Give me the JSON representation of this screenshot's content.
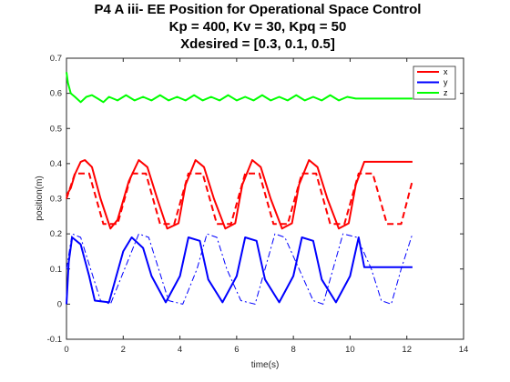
{
  "chart_data": {
    "type": "line",
    "title_lines": [
      "P4 A iii- EE Position for Operational Space Control",
      "Kp = 400, Kv = 30, Kpq = 50",
      "Xdesired = [0.3, 0.1, 0.5]"
    ],
    "xlabel": "time(s)",
    "ylabel": "position(m)",
    "xlim": [
      0,
      14
    ],
    "ylim": [
      -0.1,
      0.7
    ],
    "xticks": [
      "0",
      "2",
      "4",
      "6",
      "8",
      "10",
      "12",
      "14"
    ],
    "yticks": [
      "-0.1",
      "0",
      "0.1",
      "0.2",
      "0.3",
      "0.4",
      "0.5",
      "0.6",
      "0.7"
    ],
    "grid": false,
    "legend_position": "top-right",
    "legend": [
      {
        "label": "x",
        "color": "#ff0000"
      },
      {
        "label": "y",
        "color": "#0000ff"
      },
      {
        "label": "z",
        "color": "#00ff00"
      }
    ],
    "series": [
      {
        "name": "x",
        "color": "#ff0000",
        "style": "solid",
        "width": 2,
        "x": [
          0,
          0.15,
          0.3,
          0.5,
          0.65,
          0.9,
          1.2,
          1.55,
          1.8,
          2.2,
          2.55,
          2.85,
          3.2,
          3.55,
          3.95,
          4.2,
          4.55,
          4.85,
          5.2,
          5.6,
          5.95,
          6.2,
          6.55,
          6.85,
          7.2,
          7.6,
          7.95,
          8.2,
          8.55,
          8.85,
          9.2,
          9.6,
          9.95,
          10.2,
          10.5,
          12.2
        ],
        "y": [
          0.31,
          0.33,
          0.37,
          0.405,
          0.41,
          0.39,
          0.3,
          0.215,
          0.24,
          0.35,
          0.41,
          0.39,
          0.3,
          0.215,
          0.23,
          0.34,
          0.41,
          0.39,
          0.3,
          0.215,
          0.23,
          0.34,
          0.41,
          0.39,
          0.3,
          0.215,
          0.23,
          0.34,
          0.41,
          0.39,
          0.3,
          0.215,
          0.23,
          0.34,
          0.405,
          0.405
        ]
      },
      {
        "name": "",
        "color": "#ff0000",
        "style": "dashed",
        "width": 2,
        "x": [
          0,
          0.3,
          0.8,
          1.3,
          1.8,
          2.3,
          2.8,
          3.3,
          3.8,
          4.3,
          4.8,
          5.3,
          5.8,
          6.3,
          6.8,
          7.3,
          7.8,
          8.3,
          8.8,
          9.3,
          9.8,
          10.3,
          10.8,
          11.3,
          11.8,
          12.2
        ],
        "y": [
          0.3,
          0.372,
          0.372,
          0.228,
          0.228,
          0.372,
          0.372,
          0.228,
          0.228,
          0.372,
          0.372,
          0.228,
          0.228,
          0.372,
          0.372,
          0.228,
          0.228,
          0.372,
          0.372,
          0.228,
          0.228,
          0.372,
          0.372,
          0.228,
          0.228,
          0.352
        ]
      },
      {
        "name": "y",
        "color": "#0000ff",
        "style": "solid",
        "width": 2,
        "x": [
          0,
          0.08,
          0.2,
          0.5,
          0.8,
          1.0,
          1.5,
          2.0,
          2.3,
          2.7,
          3.0,
          3.5,
          4.0,
          4.3,
          4.7,
          5.0,
          5.5,
          6.0,
          6.3,
          6.7,
          7.0,
          7.5,
          8.0,
          8.3,
          8.7,
          9.0,
          9.5,
          10.0,
          10.3,
          10.5,
          12.2
        ],
        "y": [
          0.0,
          0.12,
          0.19,
          0.17,
          0.08,
          0.01,
          0.005,
          0.15,
          0.19,
          0.16,
          0.08,
          0.005,
          0.08,
          0.19,
          0.18,
          0.07,
          0.005,
          0.08,
          0.19,
          0.18,
          0.07,
          0.005,
          0.08,
          0.19,
          0.18,
          0.07,
          0.005,
          0.08,
          0.19,
          0.105,
          0.105
        ]
      },
      {
        "name": "",
        "color": "#0000ff",
        "style": "dashdot",
        "width": 1,
        "x": [
          0,
          0.2,
          0.5,
          0.85,
          1.2,
          1.55,
          2.05,
          2.55,
          2.9,
          3.25,
          3.6,
          4.1,
          4.6,
          4.95,
          5.3,
          5.65,
          6.15,
          6.65,
          7.0,
          7.35,
          7.7,
          8.2,
          8.7,
          9.05,
          9.4,
          9.75,
          10.25,
          10.75,
          11.1,
          11.45,
          11.8,
          12.2
        ],
        "y": [
          0.1,
          0.2,
          0.19,
          0.1,
          0.01,
          0.0,
          0.1,
          0.2,
          0.19,
          0.1,
          0.01,
          0.0,
          0.1,
          0.2,
          0.19,
          0.1,
          0.01,
          0.0,
          0.1,
          0.2,
          0.19,
          0.1,
          0.01,
          0.0,
          0.1,
          0.2,
          0.19,
          0.1,
          0.01,
          0.0,
          0.1,
          0.2
        ]
      },
      {
        "name": "z",
        "color": "#00ff00",
        "style": "solid",
        "width": 2,
        "x": [
          0,
          0.05,
          0.15,
          0.3,
          0.5,
          0.7,
          0.9,
          1.1,
          1.3,
          1.5,
          1.8,
          2.1,
          2.4,
          2.7,
          3.0,
          3.3,
          3.6,
          3.9,
          4.2,
          4.5,
          4.8,
          5.1,
          5.4,
          5.7,
          6.0,
          6.3,
          6.6,
          6.9,
          7.2,
          7.5,
          7.8,
          8.1,
          8.4,
          8.7,
          9.0,
          9.3,
          9.6,
          9.9,
          10.2,
          10.5,
          12.2
        ],
        "y": [
          0.66,
          0.63,
          0.6,
          0.59,
          0.575,
          0.59,
          0.595,
          0.585,
          0.575,
          0.59,
          0.58,
          0.595,
          0.58,
          0.59,
          0.58,
          0.595,
          0.58,
          0.59,
          0.58,
          0.595,
          0.58,
          0.59,
          0.58,
          0.595,
          0.58,
          0.59,
          0.58,
          0.595,
          0.58,
          0.59,
          0.58,
          0.595,
          0.58,
          0.59,
          0.58,
          0.595,
          0.58,
          0.59,
          0.585,
          0.585,
          0.585
        ]
      }
    ]
  }
}
